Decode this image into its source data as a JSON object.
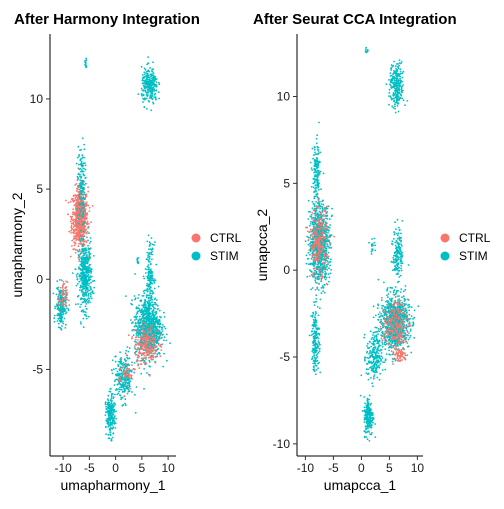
{
  "colors": {
    "CTRL": "#F8766D",
    "STIM": "#00BFC4"
  },
  "chart_data": [
    {
      "type": "scatter",
      "title": "After Harmony Integration",
      "xlabel": "umapharmony_1",
      "ylabel": "umapharmony_2",
      "xlim": [
        -12.5,
        11.5
      ],
      "ylim": [
        -9.8,
        13.6
      ],
      "xticks": [
        "-10",
        "-5",
        "0",
        "5",
        "10"
      ],
      "xtick_values": [
        -10,
        -5,
        0,
        5,
        10
      ],
      "yticks": [
        "-5",
        "0",
        "5",
        "10"
      ],
      "ytick_values": [
        -5,
        0,
        5,
        10
      ],
      "legend": {
        "placement": "right",
        "entries": [
          "CTRL",
          "STIM"
        ]
      },
      "grid": false,
      "clusters": [
        {
          "name": "CTRL",
          "cx": -6.8,
          "cy": 3.4,
          "sx": 1.1,
          "sy": 1.2,
          "n": 700
        },
        {
          "name": "STIM",
          "cx": -6.5,
          "cy": 5.2,
          "sx": 0.5,
          "sy": 1.6,
          "n": 150
        },
        {
          "name": "STIM",
          "cx": -5.8,
          "cy": 0.2,
          "sx": 0.9,
          "sy": 1.3,
          "n": 450
        },
        {
          "name": "STIM",
          "cx": -10.4,
          "cy": -1.5,
          "sx": 0.7,
          "sy": 0.8,
          "n": 220
        },
        {
          "name": "CTRL",
          "cx": -10.0,
          "cy": -1.0,
          "sx": 0.6,
          "sy": 0.6,
          "n": 50
        },
        {
          "name": "STIM",
          "cx": 6.2,
          "cy": -2.7,
          "sx": 1.8,
          "sy": 1.2,
          "n": 900
        },
        {
          "name": "CTRL",
          "cx": 5.8,
          "cy": -3.6,
          "sx": 1.6,
          "sy": 0.8,
          "n": 220
        },
        {
          "name": "STIM",
          "cx": 6.5,
          "cy": 10.7,
          "sx": 1.1,
          "sy": 0.7,
          "n": 260
        },
        {
          "name": "STIM",
          "cx": 6.5,
          "cy": 0.3,
          "sx": 0.6,
          "sy": 1.2,
          "n": 150
        },
        {
          "name": "STIM",
          "cx": 1.5,
          "cy": -5.5,
          "sx": 1.3,
          "sy": 0.9,
          "n": 260
        },
        {
          "name": "CTRL",
          "cx": 2.0,
          "cy": -5.3,
          "sx": 1.2,
          "sy": 0.6,
          "n": 50
        },
        {
          "name": "STIM",
          "cx": -1.0,
          "cy": -7.6,
          "sx": 0.6,
          "sy": 0.8,
          "n": 200
        },
        {
          "name": "STIM",
          "cx": -5.7,
          "cy": 12.0,
          "sx": 0.12,
          "sy": 0.18,
          "n": 14
        },
        {
          "name": "STIM",
          "cx": 4.2,
          "cy": 1.0,
          "sx": 0.15,
          "sy": 0.15,
          "n": 10
        }
      ]
    },
    {
      "type": "scatter",
      "title": "After Seurat CCA Integration",
      "xlabel": "umapcca_1",
      "ylabel": "umapcca_2",
      "xlim": [
        -11.5,
        11.0
      ],
      "ylim": [
        -10.7,
        13.6
      ],
      "xticks": [
        "-10",
        "-5",
        "0",
        "5",
        "10"
      ],
      "xtick_values": [
        -10,
        -5,
        0,
        5,
        10
      ],
      "yticks": [
        "-10",
        "-5",
        "0",
        "5",
        "10"
      ],
      "ytick_values": [
        -10,
        -5,
        0,
        5,
        10
      ],
      "legend": {
        "placement": "right",
        "entries": [
          "CTRL",
          "STIM"
        ]
      },
      "grid": false,
      "clusters": [
        {
          "name": "STIM",
          "cx": -7.5,
          "cy": 1.6,
          "sx": 1.3,
          "sy": 1.6,
          "n": 900
        },
        {
          "name": "CTRL",
          "cx": -7.6,
          "cy": 1.6,
          "sx": 1.1,
          "sy": 1.4,
          "n": 250
        },
        {
          "name": "STIM",
          "cx": -8.0,
          "cy": 5.5,
          "sx": 0.5,
          "sy": 1.3,
          "n": 140
        },
        {
          "name": "STIM",
          "cx": -8.2,
          "cy": -4.0,
          "sx": 0.5,
          "sy": 1.3,
          "n": 180
        },
        {
          "name": "STIM",
          "cx": 6.0,
          "cy": -3.0,
          "sx": 1.8,
          "sy": 1.1,
          "n": 950
        },
        {
          "name": "CTRL",
          "cx": 6.0,
          "cy": -3.2,
          "sx": 1.6,
          "sy": 1.0,
          "n": 220
        },
        {
          "name": "STIM",
          "cx": 6.5,
          "cy": 1.0,
          "sx": 0.6,
          "sy": 1.1,
          "n": 150
        },
        {
          "name": "STIM",
          "cx": 6.3,
          "cy": 10.6,
          "sx": 0.9,
          "sy": 0.9,
          "n": 250
        },
        {
          "name": "STIM",
          "cx": 2.3,
          "cy": -5.0,
          "sx": 1.0,
          "sy": 1.0,
          "n": 220
        },
        {
          "name": "STIM",
          "cx": 1.3,
          "cy": -8.4,
          "sx": 0.6,
          "sy": 0.8,
          "n": 200
        },
        {
          "name": "STIM",
          "cx": 0.9,
          "cy": 12.6,
          "sx": 0.15,
          "sy": 0.12,
          "n": 12
        },
        {
          "name": "STIM",
          "cx": 2.0,
          "cy": 1.5,
          "sx": 0.4,
          "sy": 0.3,
          "n": 18
        },
        {
          "name": "CTRL",
          "cx": 6.7,
          "cy": -4.9,
          "sx": 1.0,
          "sy": 0.3,
          "n": 60
        }
      ]
    }
  ]
}
